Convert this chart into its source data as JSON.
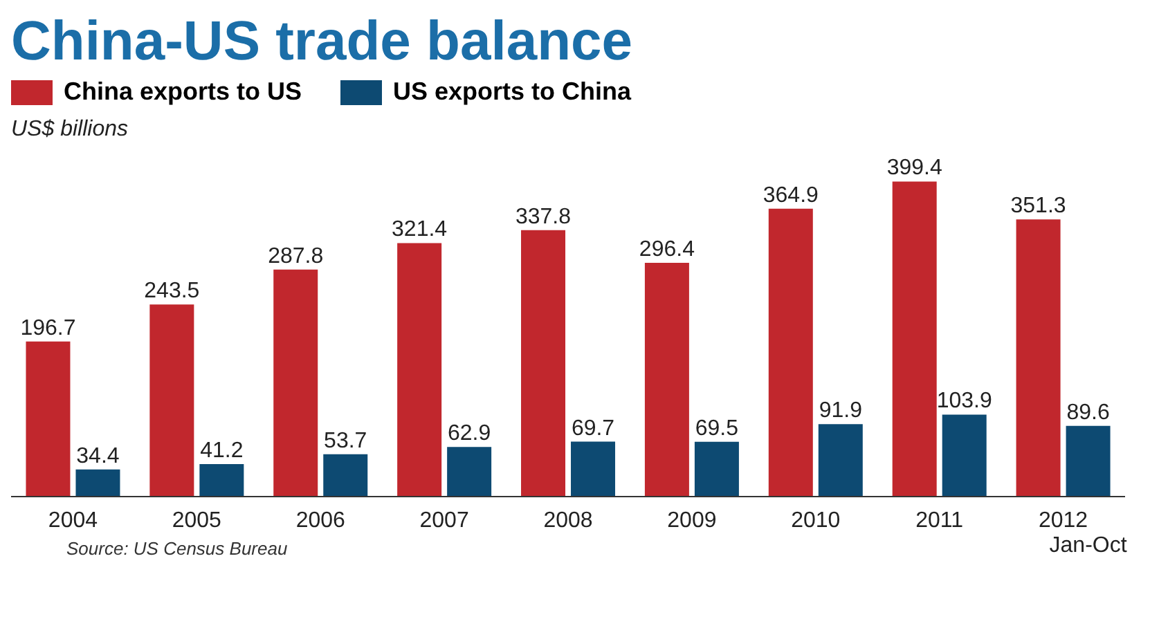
{
  "chart_data": {
    "type": "bar",
    "title": "China-US trade balance",
    "subtitle": "US$ billions",
    "categories": [
      "2004",
      "2005",
      "2006",
      "2007",
      "2008",
      "2009",
      "2010",
      "2011",
      "2012\nJan-Oct"
    ],
    "series": [
      {
        "name": "China exports to US",
        "color": "#c1272d",
        "values": [
          196.7,
          243.5,
          287.8,
          321.4,
          337.8,
          296.4,
          364.9,
          399.4,
          351.3
        ]
      },
      {
        "name": "US exports to China",
        "color": "#0d4a72",
        "values": [
          34.4,
          41.2,
          53.7,
          62.9,
          69.7,
          69.5,
          91.9,
          103.9,
          89.6
        ]
      }
    ],
    "data_labels": true,
    "legend": "top left",
    "grid": false,
    "annotations": [
      "Source: US Census Bureau"
    ]
  }
}
